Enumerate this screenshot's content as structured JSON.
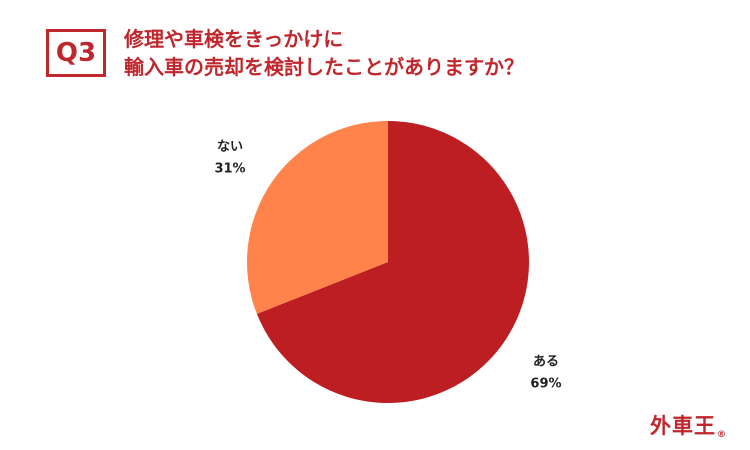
{
  "header": {
    "badge": "Q3",
    "title_line1": "修理や車検をきっかけに",
    "title_line2": "輸入車の売却を検討したことがありますか？"
  },
  "chart_data": {
    "type": "pie",
    "title": "修理や車検をきっかけに輸入車の売却を検討したことがありますか？",
    "slices": [
      {
        "label": "ある",
        "value": 69,
        "display": "69%",
        "color": "#bc1e22"
      },
      {
        "label": "ない",
        "value": 31,
        "display": "31%",
        "color": "#ff834a"
      }
    ],
    "start": "12 o'clock",
    "direction": "clockwise"
  },
  "brand": {
    "logo_text": "外車王",
    "logo_mark": "®",
    "color": "#c0272d"
  }
}
